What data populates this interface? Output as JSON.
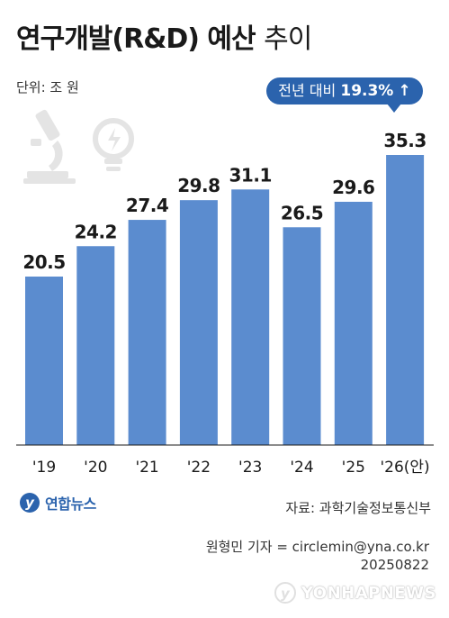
{
  "header": {
    "title_bold": "연구개발(R&D) 예산",
    "title_light": "추이",
    "unit": "단위: 조 원"
  },
  "callout": {
    "prefix": "전년 대비",
    "value": "19.3%",
    "arrow": "↑"
  },
  "chart_data": {
    "type": "bar",
    "title": "연구개발(R&D) 예산 추이",
    "ylabel": "조 원",
    "categories": [
      "'19",
      "'20",
      "'21",
      "'22",
      "'23",
      "'24",
      "'25",
      "'26(안)"
    ],
    "values": [
      20.5,
      24.2,
      27.4,
      29.8,
      31.1,
      26.5,
      29.6,
      35.3
    ],
    "ylim": [
      0,
      35.3
    ],
    "bar_color": "#5b8ccf",
    "grid": false
  },
  "footer": {
    "logo_text": "연합뉴스",
    "source": "자료: 과학기술정보통신부",
    "reporter": "원형민 기자 = circlemin@yna.co.kr",
    "date": "20250822",
    "watermark": "YONHAPNEWS"
  },
  "icons": [
    "microscope-icon",
    "lightbulb-icon"
  ]
}
